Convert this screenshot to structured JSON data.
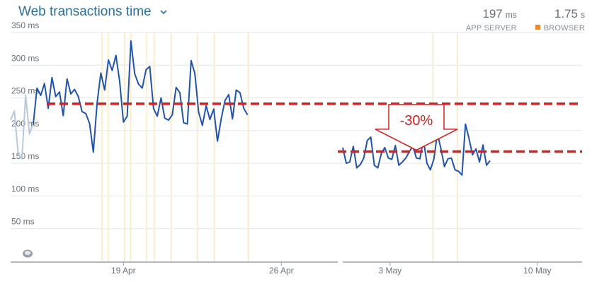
{
  "header": {
    "title": "Web transactions time",
    "app_server_value": "197",
    "app_server_unit": "ms",
    "app_server_label": "APP SERVER",
    "browser_value": "1.75",
    "browser_unit": "s",
    "browser_label": "BROWSER"
  },
  "colors": {
    "series": "#2154a8",
    "faded_series": "#b8c8dd",
    "highlight_band": "#fcecd0",
    "reference_line": "#d42020",
    "browser": "#f08a28",
    "grid": "#e3e6ea"
  },
  "chart_data": [
    {
      "type": "line",
      "title": "Web transactions time",
      "ylim": [
        0,
        350
      ],
      "yticks": [
        {
          "value": 350,
          "label": "350 ms"
        },
        {
          "value": 300,
          "label": "300 ms"
        },
        {
          "value": 250,
          "label": "250 ms"
        },
        {
          "value": 200,
          "label": "200 ms"
        },
        {
          "value": 150,
          "label": "150 ms"
        },
        {
          "value": 100,
          "label": "100 ms"
        },
        {
          "value": 50,
          "label": "50 ms"
        }
      ],
      "xlim": [
        "2023-04-14T00:00",
        "2023-04-28T12:00"
      ],
      "xticks": [
        {
          "x": "2023-04-19T00:00",
          "label": "19 Apr"
        },
        {
          "x": "2023-04-26T00:00",
          "label": "26 Apr"
        }
      ],
      "grid": true,
      "faded_series": [
        {
          "x": "2023-04-14T00:00",
          "y": 216
        },
        {
          "x": "2023-04-14T04:00",
          "y": 230
        },
        {
          "x": "2023-04-14T08:00",
          "y": 165
        },
        {
          "x": "2023-04-14T12:00",
          "y": 157
        },
        {
          "x": "2023-04-14T16:00",
          "y": 254
        },
        {
          "x": "2023-04-14T20:00",
          "y": 195
        },
        {
          "x": "2023-04-15T00:00",
          "y": 211
        }
      ],
      "series": [
        {
          "values": [
            {
              "x": "2023-04-15T00:00",
              "y": 209
            },
            {
              "x": "2023-04-15T04:00",
              "y": 265
            },
            {
              "x": "2023-04-15T08:00",
              "y": 254
            },
            {
              "x": "2023-04-15T12:00",
              "y": 272
            },
            {
              "x": "2023-04-15T16:00",
              "y": 234
            },
            {
              "x": "2023-04-15T20:00",
              "y": 281
            },
            {
              "x": "2023-04-16T00:00",
              "y": 252
            },
            {
              "x": "2023-04-16T04:00",
              "y": 259
            },
            {
              "x": "2023-04-16T08:00",
              "y": 223
            },
            {
              "x": "2023-04-16T12:00",
              "y": 279
            },
            {
              "x": "2023-04-16T16:00",
              "y": 256
            },
            {
              "x": "2023-04-16T20:00",
              "y": 263
            },
            {
              "x": "2023-04-17T00:00",
              "y": 252
            },
            {
              "x": "2023-04-17T04:00",
              "y": 229
            },
            {
              "x": "2023-04-17T08:00",
              "y": 226
            },
            {
              "x": "2023-04-17T12:00",
              "y": 211
            },
            {
              "x": "2023-04-17T16:00",
              "y": 167
            },
            {
              "x": "2023-04-17T20:00",
              "y": 242
            },
            {
              "x": "2023-04-18T00:00",
              "y": 288
            },
            {
              "x": "2023-04-18T04:00",
              "y": 262
            },
            {
              "x": "2023-04-18T08:00",
              "y": 308
            },
            {
              "x": "2023-04-18T12:00",
              "y": 292
            },
            {
              "x": "2023-04-18T16:00",
              "y": 315
            },
            {
              "x": "2023-04-18T20:00",
              "y": 275
            },
            {
              "x": "2023-04-19T00:00",
              "y": 213
            },
            {
              "x": "2023-04-19T04:00",
              "y": 222
            },
            {
              "x": "2023-04-19T08:00",
              "y": 337
            },
            {
              "x": "2023-04-19T12:00",
              "y": 287
            },
            {
              "x": "2023-04-19T16:00",
              "y": 271
            },
            {
              "x": "2023-04-19T20:00",
              "y": 265
            },
            {
              "x": "2023-04-20T00:00",
              "y": 293
            },
            {
              "x": "2023-04-20T04:00",
              "y": 298
            },
            {
              "x": "2023-04-20T08:00",
              "y": 234
            },
            {
              "x": "2023-04-20T12:00",
              "y": 222
            },
            {
              "x": "2023-04-20T16:00",
              "y": 250
            },
            {
              "x": "2023-04-20T20:00",
              "y": 219
            },
            {
              "x": "2023-04-21T00:00",
              "y": 216
            },
            {
              "x": "2023-04-21T04:00",
              "y": 224
            },
            {
              "x": "2023-04-21T08:00",
              "y": 266
            },
            {
              "x": "2023-04-21T12:00",
              "y": 258
            },
            {
              "x": "2023-04-21T16:00",
              "y": 212
            },
            {
              "x": "2023-04-21T20:00",
              "y": 210
            },
            {
              "x": "2023-04-22T00:00",
              "y": 307
            },
            {
              "x": "2023-04-22T04:00",
              "y": 287
            },
            {
              "x": "2023-04-22T08:00",
              "y": 228
            },
            {
              "x": "2023-04-22T12:00",
              "y": 208
            },
            {
              "x": "2023-04-22T16:00",
              "y": 238
            },
            {
              "x": "2023-04-22T20:00",
              "y": 217
            },
            {
              "x": "2023-04-23T00:00",
              "y": 233
            },
            {
              "x": "2023-04-23T04:00",
              "y": 184
            },
            {
              "x": "2023-04-23T08:00",
              "y": 218
            },
            {
              "x": "2023-04-23T12:00",
              "y": 246
            },
            {
              "x": "2023-04-23T16:00",
              "y": 255
            },
            {
              "x": "2023-04-23T20:00",
              "y": 218
            },
            {
              "x": "2023-04-24T00:00",
              "y": 262
            },
            {
              "x": "2023-04-24T04:00",
              "y": 258
            },
            {
              "x": "2023-04-24T08:00",
              "y": 234
            },
            {
              "x": "2023-04-24T12:00",
              "y": 224
            }
          ]
        }
      ],
      "highlight_bands": [
        {
          "start": "2023-04-18T00:30",
          "end": "2023-04-18T02:00"
        },
        {
          "start": "2023-04-18T07:00",
          "end": "2023-04-18T08:00"
        },
        {
          "start": "2023-04-19T00:30",
          "end": "2023-04-19T01:30"
        },
        {
          "start": "2023-04-19T07:00",
          "end": "2023-04-19T08:00"
        },
        {
          "start": "2023-04-20T00:00",
          "end": "2023-04-20T01:00"
        },
        {
          "start": "2023-04-20T08:00",
          "end": "2023-04-20T09:00"
        },
        {
          "start": "2023-04-21T02:00",
          "end": "2023-04-21T03:00"
        },
        {
          "start": "2023-04-22T06:00",
          "end": "2023-04-22T07:00"
        },
        {
          "start": "2023-04-23T00:00",
          "end": "2023-04-23T01:00"
        },
        {
          "start": "2023-04-24T12:00",
          "end": "2023-04-24T14:00"
        }
      ],
      "reference_lines": [
        {
          "y": 241
        }
      ]
    },
    {
      "type": "line",
      "ylim": [
        0,
        350
      ],
      "xlim": [
        "2023-04-30T18:00",
        "2023-05-12T03:00"
      ],
      "xticks": [
        {
          "x": "2023-05-03T00:00",
          "label": "3 May"
        },
        {
          "x": "2023-05-10T00:00",
          "label": "10 May"
        }
      ],
      "grid": true,
      "series": [
        {
          "values": [
            {
              "x": "2023-04-30T18:00",
              "y": 174
            },
            {
              "x": "2023-04-30T22:00",
              "y": 150
            },
            {
              "x": "2023-05-01T02:00",
              "y": 152
            },
            {
              "x": "2023-05-01T06:00",
              "y": 176
            },
            {
              "x": "2023-05-01T10:00",
              "y": 143
            },
            {
              "x": "2023-05-01T14:00",
              "y": 148
            },
            {
              "x": "2023-05-01T18:00",
              "y": 158
            },
            {
              "x": "2023-05-01T22:00",
              "y": 185
            },
            {
              "x": "2023-05-02T02:00",
              "y": 190
            },
            {
              "x": "2023-05-02T06:00",
              "y": 147
            },
            {
              "x": "2023-05-02T10:00",
              "y": 143
            },
            {
              "x": "2023-05-02T14:00",
              "y": 165
            },
            {
              "x": "2023-05-02T18:00",
              "y": 174
            },
            {
              "x": "2023-05-02T22:00",
              "y": 158
            },
            {
              "x": "2023-05-03T02:00",
              "y": 156
            },
            {
              "x": "2023-05-03T06:00",
              "y": 177
            },
            {
              "x": "2023-05-03T10:00",
              "y": 147
            },
            {
              "x": "2023-05-03T14:00",
              "y": 152
            },
            {
              "x": "2023-05-03T18:00",
              "y": 158
            },
            {
              "x": "2023-05-03T22:00",
              "y": 168
            },
            {
              "x": "2023-05-04T02:00",
              "y": 176
            },
            {
              "x": "2023-05-04T06:00",
              "y": 158
            },
            {
              "x": "2023-05-04T10:00",
              "y": 157
            },
            {
              "x": "2023-05-04T14:00",
              "y": 186
            },
            {
              "x": "2023-05-04T18:00",
              "y": 150
            },
            {
              "x": "2023-05-04T22:00",
              "y": 140
            },
            {
              "x": "2023-05-05T02:00",
              "y": 157
            },
            {
              "x": "2023-05-05T06:00",
              "y": 196
            },
            {
              "x": "2023-05-05T10:00",
              "y": 172
            },
            {
              "x": "2023-05-05T14:00",
              "y": 145
            },
            {
              "x": "2023-05-05T18:00",
              "y": 157
            },
            {
              "x": "2023-05-05T22:00",
              "y": 158
            },
            {
              "x": "2023-05-06T02:00",
              "y": 140
            },
            {
              "x": "2023-05-06T06:00",
              "y": 138
            },
            {
              "x": "2023-05-06T10:00",
              "y": 132
            },
            {
              "x": "2023-05-06T14:00",
              "y": 210
            },
            {
              "x": "2023-05-06T18:00",
              "y": 188
            },
            {
              "x": "2023-05-06T22:00",
              "y": 163
            },
            {
              "x": "2023-05-07T02:00",
              "y": 172
            },
            {
              "x": "2023-05-07T06:00",
              "y": 152
            },
            {
              "x": "2023-05-07T10:00",
              "y": 178
            },
            {
              "x": "2023-05-07T14:00",
              "y": 147
            },
            {
              "x": "2023-05-07T18:00",
              "y": 154
            }
          ]
        }
      ],
      "highlight_bands": [
        {
          "start": "2023-05-05T00:00",
          "end": "2023-05-05T01:00"
        },
        {
          "start": "2023-05-06T04:00",
          "end": "2023-05-06T05:00"
        }
      ],
      "reference_lines": [
        {
          "y": 168
        }
      ],
      "annotations": [
        {
          "label": "-30%"
        }
      ]
    }
  ]
}
